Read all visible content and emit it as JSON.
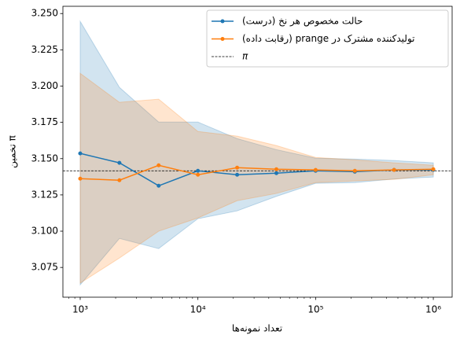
{
  "chart_data": {
    "type": "line",
    "xlabel": "تعداد نمونه‌ها",
    "ylabel": "تخمین π",
    "x": [
      1000,
      2154,
      4642,
      10000,
      21544,
      46416,
      100000,
      215443,
      464159,
      1000000
    ],
    "xscale": "log",
    "xlim": [
      713,
      1445000
    ],
    "xticks": [
      {
        "value": 1000,
        "label": "10³"
      },
      {
        "value": 10000,
        "label": "10⁴"
      },
      {
        "value": 100000,
        "label": "10⁵"
      },
      {
        "value": 1000000,
        "label": "10⁶"
      }
    ],
    "xminorticks": [
      800,
      900,
      2000,
      3000,
      4000,
      5000,
      6000,
      7000,
      8000,
      9000,
      20000,
      30000,
      40000,
      50000,
      60000,
      70000,
      80000,
      90000,
      200000,
      300000,
      400000,
      500000,
      600000,
      700000,
      800000,
      900000
    ],
    "ylim": [
      3.0545,
      3.255
    ],
    "yticks": [
      {
        "value": 3.075,
        "label": "3.075"
      },
      {
        "value": 3.1,
        "label": "3.100"
      },
      {
        "value": 3.125,
        "label": "3.125"
      },
      {
        "value": 3.15,
        "label": "3.150"
      },
      {
        "value": 3.175,
        "label": "3.175"
      },
      {
        "value": 3.2,
        "label": "3.200"
      },
      {
        "value": 3.225,
        "label": "3.225"
      },
      {
        "value": 3.25,
        "label": "3.250"
      }
    ],
    "series": [
      {
        "name": "حالت مخصوص هر نخ (درست)",
        "color": "#1f77b4",
        "values": [
          3.1536,
          3.1471,
          3.1313,
          3.1416,
          3.1389,
          3.14,
          3.1416,
          3.141,
          3.1422,
          3.1422
        ],
        "upper": [
          3.2446,
          3.1991,
          3.1752,
          3.1752,
          3.1638,
          3.1562,
          3.1503,
          3.1497,
          3.1487,
          3.1471
        ],
        "lower": [
          3.063,
          3.095,
          3.088,
          3.1086,
          3.114,
          3.124,
          3.133,
          3.1335,
          3.136,
          3.1373
        ]
      },
      {
        "name": "تولیدکننده مشترک در prange (رقابت داده)",
        "color": "#ff7f0e",
        "values": [
          3.1362,
          3.1351,
          3.1454,
          3.1389,
          3.1438,
          3.1427,
          3.1422,
          3.1416,
          3.1422,
          3.1427
        ],
        "upper": [
          3.2088,
          3.1888,
          3.191,
          3.1687,
          3.1655,
          3.159,
          3.1508,
          3.1492,
          3.1471,
          3.1454
        ],
        "lower": [
          3.0642,
          3.0815,
          3.1,
          3.1091,
          3.121,
          3.126,
          3.1335,
          3.1346,
          3.1357,
          3.1389
        ]
      }
    ],
    "reference_line": {
      "name": "π",
      "value": 3.14159,
      "color": "#000000"
    },
    "legend": "upper right"
  }
}
